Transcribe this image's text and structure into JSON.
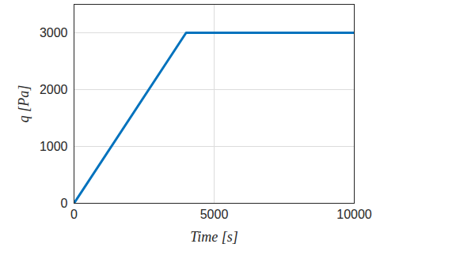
{
  "chart_data": {
    "type": "line",
    "x_label": "Time [s]",
    "y_label": "q [Pa]",
    "x": [
      0,
      4000,
      10000
    ],
    "series": [
      {
        "name": "q",
        "color": "#0072bd",
        "values": [
          0,
          3000,
          3000
        ]
      }
    ],
    "xlim": [
      0,
      10000
    ],
    "xticks": [
      0,
      5000,
      10000
    ],
    "ylim": [
      0,
      3500
    ],
    "yticks": [
      0,
      1000,
      2000,
      3000
    ],
    "grid": true
  }
}
